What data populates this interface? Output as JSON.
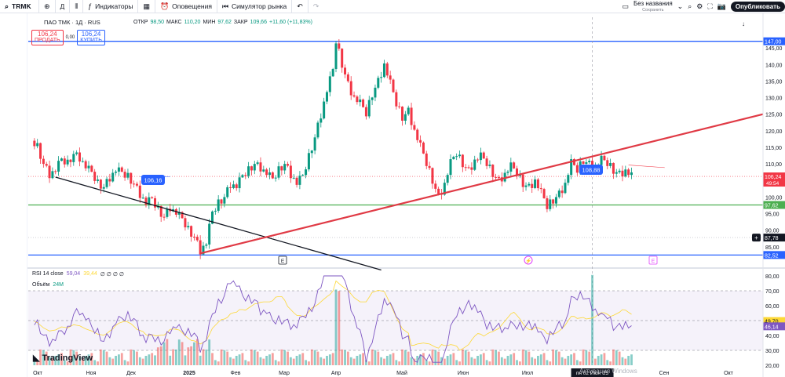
{
  "toolbar": {
    "symbol": "TRMK",
    "interval": "Д",
    "indicators": "Индикаторы",
    "alerts": "Оповещения",
    "replay": "Симулятор рынка",
    "doc_title": "Без названия",
    "doc_status": "Сохранить",
    "publish": "Опубликовать"
  },
  "legend": {
    "title": "ПАО ТМК · 1Д · RUS",
    "open_label": "ОТКР",
    "open": "98,50",
    "high_label": "МАКС",
    "high": "110,20",
    "low_label": "МИН",
    "low": "97,62",
    "close_label": "ЗАКР",
    "close": "109,66",
    "change": "+11,60 (+11,83%)"
  },
  "trade": {
    "sell_price": "106,24",
    "sell_label": "ПРОДАТЬ",
    "spread": "0,00",
    "buy_price": "106,24",
    "buy_label": "КУПИТЬ"
  },
  "rsi_legend": {
    "name": "RSI 14 close",
    "v1": "59,04",
    "v2": "39,44",
    "v3": "∅ ∅ ∅ ∅"
  },
  "vol_legend": {
    "name": "Объём",
    "v": "24M"
  },
  "logo": "TradingView",
  "watermark": "Активация Windows",
  "chart_data": {
    "type": "candlestick",
    "title": "ПАО ТМК · 1Д · RUS",
    "x_ticks": [
      "Окт",
      "Ноя",
      "Дек",
      "2025",
      "Фев",
      "Мар",
      "Апр",
      "Май",
      "Июн",
      "Июл",
      "Авг",
      "Сен",
      "Окт"
    ],
    "crosshair_date": "пн 02 Июн '25",
    "price_axis": {
      "ticks": [
        85,
        90,
        95,
        100,
        105,
        110,
        115,
        120,
        125,
        130,
        135,
        140,
        145
      ],
      "range": [
        80,
        150
      ]
    },
    "price_labels": [
      {
        "value": 147.0,
        "text": "147,00",
        "color": "#2962ff"
      },
      {
        "value": 106.24,
        "text": "106,24",
        "sub": "49:54",
        "color": "#f23645"
      },
      {
        "value": 97.62,
        "text": "97,62",
        "color": "#4caf50"
      },
      {
        "value": 87.78,
        "text": "87,78",
        "color": "#131722"
      },
      {
        "value": 82.52,
        "text": "82,52",
        "color": "#2962ff"
      }
    ],
    "horizontal_lines": [
      {
        "value": 147.0,
        "color": "#2962ff"
      },
      {
        "value": 97.62,
        "color": "#4caf50"
      },
      {
        "value": 82.52,
        "color": "#2962ff"
      }
    ],
    "annotations": [
      {
        "text": "106,16",
        "color": "#2962ff"
      },
      {
        "text": "108,88",
        "color": "#2962ff"
      }
    ],
    "series_points": [
      [
        0,
        117
      ],
      [
        2,
        115
      ],
      [
        4,
        110
      ],
      [
        6,
        107
      ],
      [
        8,
        108
      ],
      [
        10,
        111
      ],
      [
        12,
        110
      ],
      [
        14,
        113
      ],
      [
        16,
        112
      ],
      [
        18,
        109
      ],
      [
        20,
        107
      ],
      [
        22,
        104
      ],
      [
        24,
        103
      ],
      [
        26,
        106
      ],
      [
        28,
        108
      ],
      [
        30,
        107
      ],
      [
        32,
        106
      ],
      [
        34,
        104
      ],
      [
        36,
        101
      ],
      [
        38,
        98
      ],
      [
        40,
        99
      ],
      [
        42,
        96
      ],
      [
        44,
        94
      ],
      [
        46,
        97
      ],
      [
        48,
        95
      ],
      [
        50,
        93
      ],
      [
        52,
        90
      ],
      [
        54,
        88
      ],
      [
        56,
        84
      ],
      [
        58,
        86
      ],
      [
        60,
        95
      ],
      [
        62,
        98
      ],
      [
        64,
        100
      ],
      [
        66,
        104
      ],
      [
        68,
        103
      ],
      [
        70,
        106
      ],
      [
        72,
        108
      ],
      [
        74,
        110
      ],
      [
        76,
        109
      ],
      [
        78,
        107
      ],
      [
        80,
        105
      ],
      [
        82,
        108
      ],
      [
        84,
        110
      ],
      [
        86,
        107
      ],
      [
        88,
        104
      ],
      [
        90,
        106
      ],
      [
        92,
        112
      ],
      [
        94,
        118
      ],
      [
        96,
        125
      ],
      [
        98,
        132
      ],
      [
        100,
        138
      ],
      [
        101,
        147
      ],
      [
        103,
        140
      ],
      [
        105,
        134
      ],
      [
        107,
        130
      ],
      [
        109,
        128
      ],
      [
        111,
        125
      ],
      [
        113,
        131
      ],
      [
        115,
        135
      ],
      [
        117,
        140
      ],
      [
        119,
        134
      ],
      [
        121,
        128
      ],
      [
        123,
        124
      ],
      [
        125,
        126
      ],
      [
        127,
        120
      ],
      [
        129,
        115
      ],
      [
        131,
        110
      ],
      [
        133,
        105
      ],
      [
        135,
        100
      ],
      [
        137,
        104
      ],
      [
        139,
        110
      ],
      [
        141,
        113
      ],
      [
        143,
        110
      ],
      [
        145,
        108
      ],
      [
        147,
        111
      ],
      [
        149,
        112
      ],
      [
        151,
        110
      ],
      [
        153,
        107
      ],
      [
        155,
        105
      ],
      [
        157,
        107
      ],
      [
        159,
        109
      ],
      [
        161,
        107
      ],
      [
        163,
        104
      ],
      [
        165,
        103
      ],
      [
        167,
        105
      ],
      [
        169,
        101
      ],
      [
        171,
        97
      ],
      [
        173,
        99
      ],
      [
        175,
        101
      ],
      [
        177,
        104
      ],
      [
        179,
        110
      ],
      [
        181,
        108
      ],
      [
        183,
        111
      ],
      [
        185,
        110
      ],
      [
        187,
        109
      ],
      [
        189,
        111
      ],
      [
        191,
        110
      ],
      [
        193,
        108
      ],
      [
        195,
        107
      ],
      [
        197,
        108
      ],
      [
        199,
        106
      ]
    ],
    "rsi": {
      "name": "RSI 14 close",
      "value": 46.14,
      "ma_value": 49.7,
      "levels": [
        70,
        50,
        30
      ],
      "axis": [
        20,
        30,
        40,
        50,
        60,
        70,
        80
      ]
    },
    "volume": {
      "name": "Объём",
      "axis": [
        "4M",
        "8M",
        "12M",
        "16M",
        "20M",
        "24M"
      ],
      "current": "465,16K"
    }
  }
}
